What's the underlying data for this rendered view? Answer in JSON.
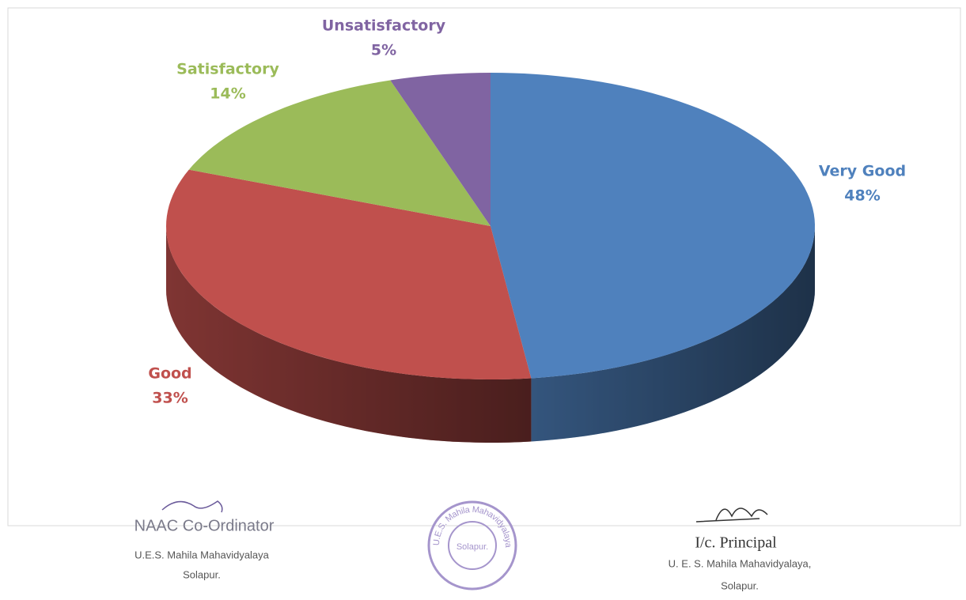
{
  "chart_data": {
    "type": "pie",
    "categories": [
      "Very Good",
      "Good",
      "Satisfactory",
      "Unsatisfactory"
    ],
    "values": [
      48,
      33,
      14,
      5
    ],
    "value_labels": [
      "48%",
      "33%",
      "14%",
      "5%"
    ],
    "colors": [
      "#4f81bd",
      "#c0504d",
      "#9bbb59",
      "#8064a2"
    ]
  },
  "footer": {
    "left": {
      "title": "NAAC Co-Ordinator",
      "line1": "U.E.S. Mahila Mahavidyalaya",
      "line2": "Solapur."
    },
    "stamp": {
      "ring": "U.E.S. Mahila Mahavidyalaya",
      "center": "Solapur."
    },
    "right": {
      "title": "I/c. Principal",
      "line1": "U. E. S. Mahila Mahavidyalaya,",
      "line2": "Solapur."
    }
  }
}
